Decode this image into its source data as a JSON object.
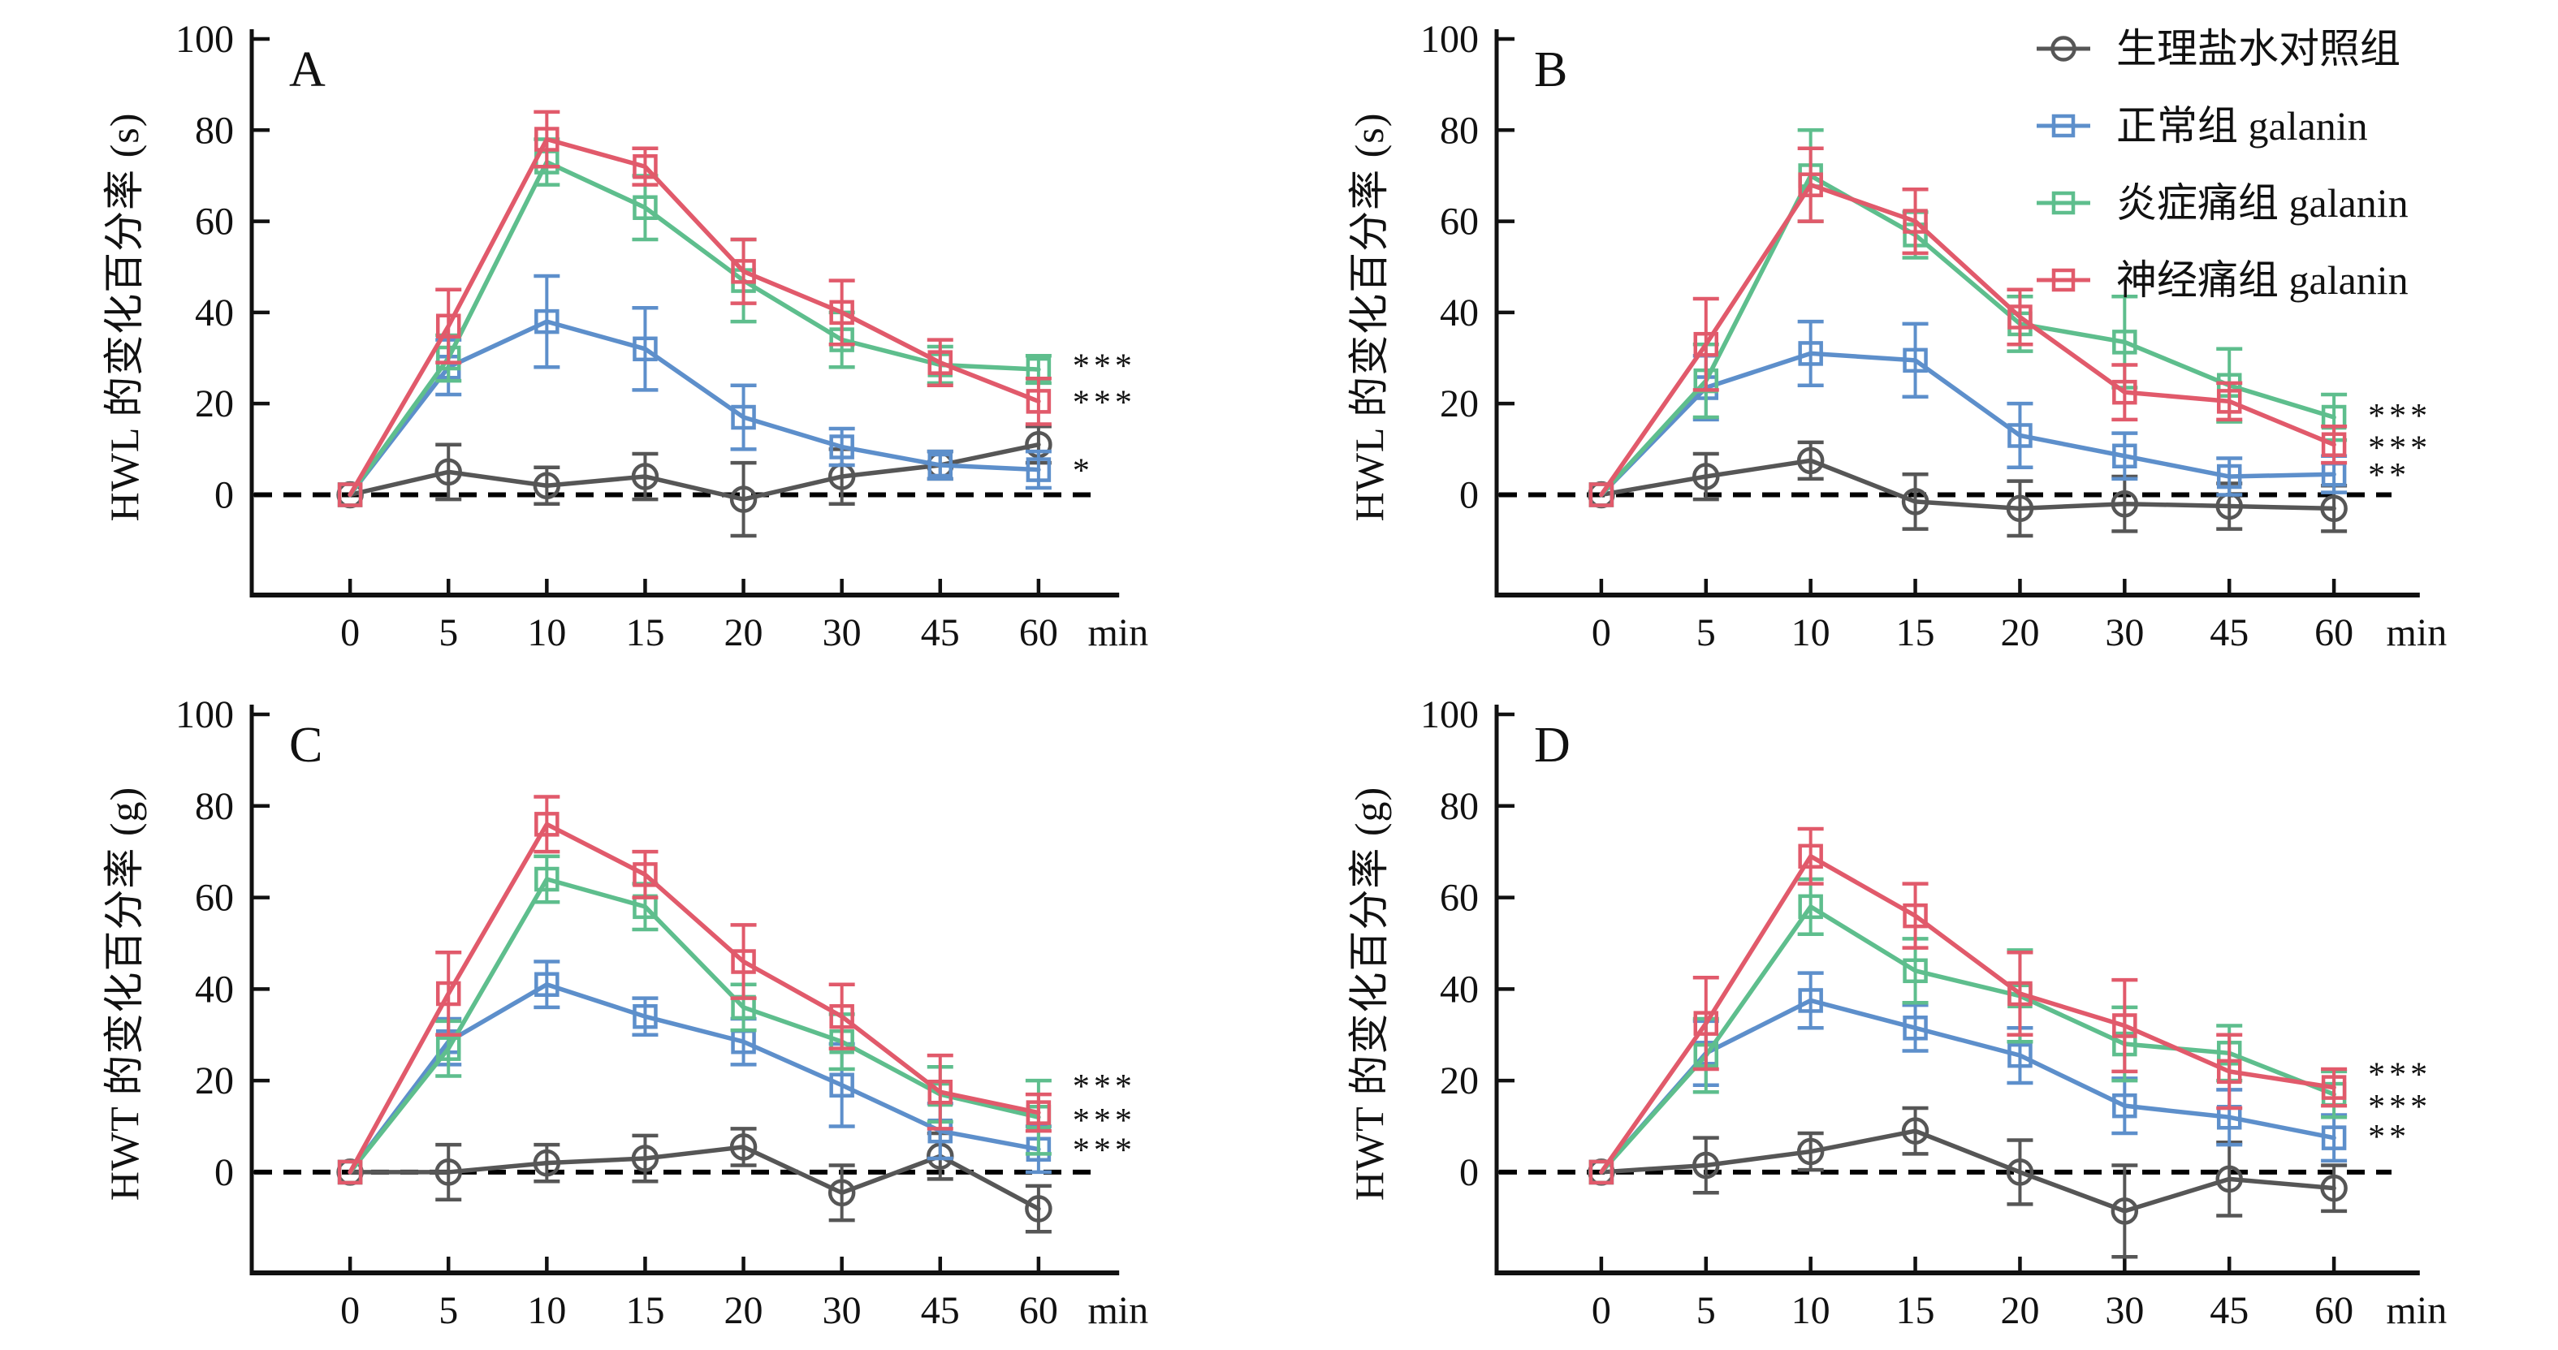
{
  "figure": {
    "background": "#ffffff",
    "axis_color": "#111111",
    "x_tick_labels": [
      "0",
      "5",
      "10",
      "15",
      "20",
      "30",
      "45",
      "60"
    ],
    "x_unit": "min",
    "y_ticks": [
      0,
      20,
      40,
      60,
      80,
      100
    ],
    "ylim": [
      -22,
      100
    ],
    "legend": {
      "panel_index": 1,
      "items": [
        {
          "label": "生理盐水对照组",
          "series": "saline",
          "marker": "circle",
          "color": "#565656"
        },
        {
          "label": "正常组 galanin",
          "series": "normal",
          "marker": "square",
          "color": "#5d8fcb"
        },
        {
          "label": "炎症痛组 galanin",
          "series": "inflammatory",
          "marker": "square",
          "color": "#5ebe8d"
        },
        {
          "label": "神经痛组 galanin",
          "series": "neuropathic",
          "marker": "square",
          "color": "#e15a6b"
        }
      ]
    }
  },
  "chart_data": [
    {
      "type": "line",
      "panel": "A",
      "ylabel": "HWL 的变化百分率 (s)",
      "x": [
        0,
        5,
        10,
        15,
        20,
        30,
        45,
        60
      ],
      "x_unit": "min",
      "ylim": [
        -22,
        100
      ],
      "grid": false,
      "series": [
        {
          "name": "生理盐水对照组",
          "key": "saline",
          "marker": "circle",
          "color": "#565656",
          "values": [
            0,
            5,
            2,
            4,
            -1,
            4,
            6.5,
            11
          ],
          "errors": [
            0,
            6,
            4,
            5,
            8,
            6,
            3,
            4
          ]
        },
        {
          "name": "正常组 galanin",
          "key": "normal",
          "marker": "square",
          "color": "#5d8fcb",
          "values": [
            0,
            28,
            38,
            32,
            17,
            10.5,
            6.5,
            5.5
          ],
          "errors": [
            0,
            6,
            10,
            9,
            7,
            4,
            3,
            4
          ]
        },
        {
          "name": "炎症痛组 galanin",
          "key": "inflammatory",
          "marker": "square",
          "color": "#5ebe8d",
          "values": [
            0,
            30,
            73,
            63,
            47,
            34,
            28.5,
            27.5
          ],
          "errors": [
            0,
            5,
            5,
            7,
            9,
            6,
            4,
            3
          ]
        },
        {
          "name": "神经痛组 galanin",
          "key": "neuropathic",
          "marker": "square",
          "color": "#e15a6b",
          "values": [
            0,
            37,
            78,
            72,
            49,
            40,
            29,
            20.5
          ],
          "errors": [
            0,
            8,
            6,
            4,
            7,
            7,
            5,
            5
          ]
        }
      ],
      "significance": [
        {
          "text": "***",
          "y": 28.5
        },
        {
          "text": "***",
          "y": 20.5
        },
        {
          "text": "*",
          "y": 5.5
        }
      ]
    },
    {
      "type": "line",
      "panel": "B",
      "ylabel": "HWL 的变化百分率 (s)",
      "x": [
        0,
        5,
        10,
        15,
        20,
        30,
        45,
        60
      ],
      "x_unit": "min",
      "ylim": [
        -22,
        100
      ],
      "grid": false,
      "series": [
        {
          "name": "生理盐水对照组",
          "key": "saline",
          "marker": "circle",
          "color": "#565656",
          "values": [
            0,
            4,
            7.5,
            -1.5,
            -3,
            -2,
            -2.5,
            -3
          ],
          "errors": [
            0,
            5,
            4,
            6,
            6,
            6,
            5,
            5
          ]
        },
        {
          "name": "正常组 galanin",
          "key": "normal",
          "marker": "square",
          "color": "#5d8fcb",
          "values": [
            0,
            23.5,
            31,
            29.5,
            13,
            8.5,
            4,
            4.5
          ],
          "errors": [
            0,
            7,
            7,
            8,
            7,
            5,
            4,
            4
          ]
        },
        {
          "name": "炎症痛组 galanin",
          "key": "inflammatory",
          "marker": "square",
          "color": "#5ebe8d",
          "values": [
            0,
            25,
            70,
            57,
            37.5,
            33.5,
            24,
            17
          ],
          "errors": [
            0,
            8,
            10,
            5,
            6,
            10,
            8,
            5
          ]
        },
        {
          "name": "神经痛组 galanin",
          "key": "neuropathic",
          "marker": "square",
          "color": "#e15a6b",
          "values": [
            0,
            33,
            68,
            60,
            39,
            22.5,
            20.5,
            11
          ],
          "errors": [
            0,
            10,
            8,
            7,
            6,
            6,
            4,
            4
          ]
        }
      ],
      "significance": [
        {
          "text": "***",
          "y": 17.5
        },
        {
          "text": "***",
          "y": 10.5
        },
        {
          "text": "**",
          "y": 4.5
        }
      ]
    },
    {
      "type": "line",
      "panel": "C",
      "ylabel": "HWT 的变化百分率 (g)",
      "x": [
        0,
        5,
        10,
        15,
        20,
        30,
        45,
        60
      ],
      "x_unit": "min",
      "ylim": [
        -22,
        100
      ],
      "grid": false,
      "series": [
        {
          "name": "生理盐水对照组",
          "key": "saline",
          "marker": "circle",
          "color": "#565656",
          "values": [
            0,
            0,
            2,
            3,
            5.5,
            -4.5,
            3.5,
            -8
          ],
          "errors": [
            0,
            6,
            4,
            5,
            4,
            6,
            5,
            5
          ]
        },
        {
          "name": "正常组 galanin",
          "key": "normal",
          "marker": "square",
          "color": "#5d8fcb",
          "values": [
            0,
            28.5,
            41,
            34,
            28.5,
            19,
            9,
            5
          ],
          "errors": [
            0,
            5,
            5,
            4,
            5,
            9,
            6,
            5
          ]
        },
        {
          "name": "炎症痛组 galanin",
          "key": "inflammatory",
          "marker": "square",
          "color": "#5ebe8d",
          "values": [
            0,
            27,
            64,
            58,
            36,
            28.5,
            17,
            12
          ],
          "errors": [
            0,
            6,
            5,
            5,
            5,
            6,
            6,
            8
          ]
        },
        {
          "name": "神经痛组 galanin",
          "key": "neuropathic",
          "marker": "square",
          "color": "#e15a6b",
          "values": [
            0,
            39,
            76,
            65,
            46,
            34,
            17.5,
            13
          ],
          "errors": [
            0,
            9,
            6,
            5,
            8,
            7,
            8,
            4
          ]
        }
      ],
      "significance": [
        {
          "text": "***",
          "y": 19
        },
        {
          "text": "***",
          "y": 11.5
        },
        {
          "text": "***",
          "y": 5
        }
      ]
    },
    {
      "type": "line",
      "panel": "D",
      "ylabel": "HWT 的变化百分率 (g)",
      "x": [
        0,
        5,
        10,
        15,
        20,
        30,
        45,
        60
      ],
      "x_unit": "min",
      "ylim": [
        -22,
        100
      ],
      "grid": false,
      "series": [
        {
          "name": "生理盐水对照组",
          "key": "saline",
          "marker": "circle",
          "color": "#565656",
          "values": [
            0,
            1.5,
            4.5,
            9,
            0,
            -8.5,
            -1.5,
            -3.5
          ],
          "errors": [
            0,
            6,
            4,
            5,
            7,
            10,
            8,
            5
          ]
        },
        {
          "name": "正常组 galanin",
          "key": "normal",
          "marker": "square",
          "color": "#5d8fcb",
          "values": [
            0,
            26,
            37.5,
            31.5,
            25.5,
            14.5,
            12,
            7.5
          ],
          "errors": [
            0,
            7,
            6,
            5,
            6,
            6,
            6,
            5
          ]
        },
        {
          "name": "炎症痛组 galanin",
          "key": "inflammatory",
          "marker": "square",
          "color": "#5ebe8d",
          "values": [
            0,
            25.5,
            58,
            44,
            38.5,
            28,
            26,
            17
          ],
          "errors": [
            0,
            8,
            6,
            7,
            10,
            8,
            6,
            5
          ]
        },
        {
          "name": "神经痛组 galanin",
          "key": "neuropathic",
          "marker": "square",
          "color": "#e15a6b",
          "values": [
            0,
            32.5,
            69,
            56,
            39,
            32,
            22,
            18.5
          ],
          "errors": [
            0,
            10,
            6,
            7,
            9,
            10,
            8,
            4
          ]
        }
      ],
      "significance": [
        {
          "text": "***",
          "y": 21.5
        },
        {
          "text": "***",
          "y": 14.5
        },
        {
          "text": "**",
          "y": 8
        }
      ]
    }
  ]
}
